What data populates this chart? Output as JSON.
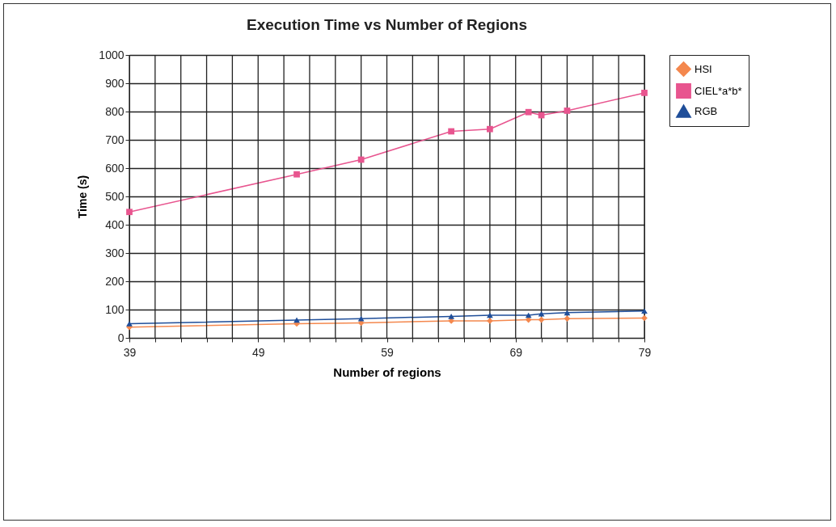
{
  "chart_data": {
    "type": "line",
    "title": "Execution Time vs Number of Regions",
    "xlabel": "Number of regions",
    "ylabel": "Time (s)",
    "x": [
      39,
      52,
      57,
      64,
      67,
      70,
      71,
      73,
      79
    ],
    "series": [
      {
        "name": "HSI",
        "color": "#f4884e",
        "marker": "diamond",
        "values": [
          38,
          50,
          53,
          60,
          60,
          64,
          64,
          68,
          70
        ]
      },
      {
        "name": "CIEL*a*b*",
        "color": "#e8558f",
        "marker": "square",
        "values": [
          445,
          578,
          630,
          730,
          738,
          798,
          787,
          803,
          866
        ]
      },
      {
        "name": "RGB",
        "color": "#1f4e99",
        "marker": "triangle",
        "values": [
          50,
          63,
          68,
          76,
          80,
          80,
          85,
          89,
          95
        ]
      }
    ],
    "xlim": [
      39,
      79
    ],
    "xticks": [
      39,
      {
        "value": 41,
        "label": null
      },
      {
        "value": 43,
        "label": null
      },
      {
        "value": 45,
        "label": null
      },
      {
        "value": 47,
        "label": null
      },
      49,
      {
        "value": 51,
        "label": null
      },
      {
        "value": 53,
        "label": null
      },
      {
        "value": 55,
        "label": null
      },
      {
        "value": 57,
        "label": null
      },
      59,
      {
        "value": 61,
        "label": null
      },
      {
        "value": 63,
        "label": null
      },
      {
        "value": 65,
        "label": null
      },
      {
        "value": 67,
        "label": null
      },
      69,
      {
        "value": 71,
        "label": null
      },
      {
        "value": 73,
        "label": null
      },
      {
        "value": 75,
        "label": null
      },
      {
        "value": 77,
        "label": null
      },
      79
    ],
    "ylim": [
      0,
      1000
    ],
    "yticks": [
      0,
      100,
      200,
      300,
      400,
      500,
      600,
      700,
      800,
      900,
      1000
    ],
    "grid": true,
    "legend": "right"
  }
}
